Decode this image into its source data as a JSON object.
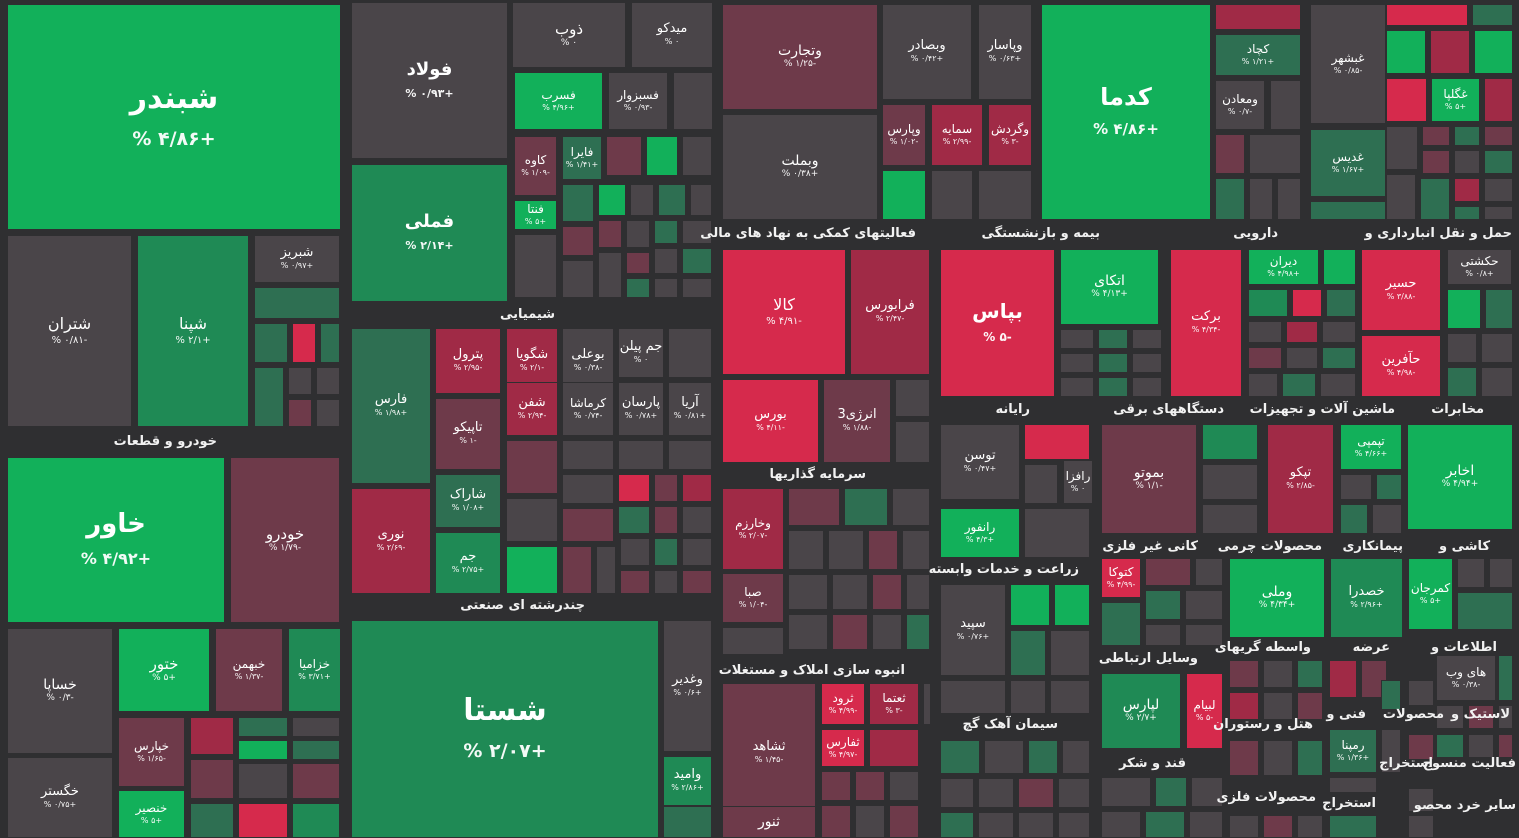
{
  "colors": {
    "background": "#2f2f31",
    "strong_green": "#12b05a",
    "green": "#1f8a55",
    "dark_green": "#2e6f52",
    "neutral": "#4a4549",
    "dark_red": "#6e3a4a",
    "red": "#a02a46",
    "strong_red": "#d62a4c"
  },
  "chart_data": {
    "type": "heatmap",
    "sectors": [
      {
        "label": "خودرو و قطعات"
      },
      {
        "label": "شیمیایی"
      },
      {
        "label": "چندرشته ای صنعتی"
      },
      {
        "label": "فعالیتهای کمکی به نهاد های مالی"
      },
      {
        "label": "بیمه و بازنشستگی"
      },
      {
        "label": "دارویی"
      },
      {
        "label": "حمل و نقل انبارداری و"
      },
      {
        "label": "سرمایه گذاریها"
      },
      {
        "label": "رایانه"
      },
      {
        "label": "دستگاههای برقی"
      },
      {
        "label": "ماشین آلات و تجهیزات"
      },
      {
        "label": "مخابرات"
      },
      {
        "label": "زراعت و خدمات وابسته"
      },
      {
        "label": "کانی غیر فلزی"
      },
      {
        "label": "محصولات چرمی"
      },
      {
        "label": "پیمانکاری"
      },
      {
        "label": "کاشی و"
      },
      {
        "label": "انبوه سازی املاک و مستغلات"
      },
      {
        "label": "وسایل ارتباطی"
      },
      {
        "label": "واسطه گریهای"
      },
      {
        "label": "عرضه"
      },
      {
        "label": "اطلاعات و"
      },
      {
        "label": "سیمان آهک گچ"
      },
      {
        "label": "هتل و رستوران"
      },
      {
        "label": "فنی و"
      },
      {
        "label": "محصولات"
      },
      {
        "label": "لاستیک و"
      },
      {
        "label": "قند و شکر"
      },
      {
        "label": "استخراج"
      },
      {
        "label": "فعالیت منسوج"
      },
      {
        "label": "محصولات فلزی"
      },
      {
        "label": "استخراج"
      },
      {
        "label": "ساير خرد محصو"
      }
    ],
    "tiles": [
      {
        "symbol": "شبندر",
        "change": "+۴/۸۶ %",
        "level": "strong_green"
      },
      {
        "symbol": "شتران",
        "change": "-۰/۸۱ %",
        "level": "neutral"
      },
      {
        "symbol": "شپنا",
        "change": "+۲/۱ %",
        "level": "green"
      },
      {
        "symbol": "شبریز",
        "change": "+۰/۹۷ %",
        "level": "neutral"
      },
      {
        "symbol": "خاور",
        "change": "+۴/۹۲ %",
        "level": "strong_green"
      },
      {
        "symbol": "خودرو",
        "change": "-۱/۷۹ %",
        "level": "dark_red"
      },
      {
        "symbol": "خساپا",
        "change": "-۰/۳ %",
        "level": "neutral"
      },
      {
        "symbol": "ختور",
        "change": "+۵ %",
        "level": "strong_green"
      },
      {
        "symbol": "خبهمن",
        "change": "-۱/۳۷ %",
        "level": "dark_red"
      },
      {
        "symbol": "خزامیا",
        "change": "+۳/۷۱ %",
        "level": "green"
      },
      {
        "symbol": "خپارس",
        "change": "-۱/۶۵ %",
        "level": "dark_red"
      },
      {
        "symbol": "خگستر",
        "change": "+۰/۷۵ %",
        "level": "neutral"
      },
      {
        "symbol": "خنصیر",
        "change": "+۵ %",
        "level": "strong_green"
      },
      {
        "symbol": "ذوب",
        "change": "۰ %",
        "level": "neutral"
      },
      {
        "symbol": "میدکو",
        "change": "۰ %",
        "level": "neutral"
      },
      {
        "symbol": "فولاد",
        "change": "+۰/۹۳ %",
        "level": "neutral"
      },
      {
        "symbol": "فسرب",
        "change": "+۴/۹۶ %",
        "level": "strong_green"
      },
      {
        "symbol": "فسبزوار",
        "change": "-۰/۹۳ %",
        "level": "neutral"
      },
      {
        "symbol": "کاوه",
        "change": "-۱/۰۹ %",
        "level": "dark_red"
      },
      {
        "symbol": "فایرا",
        "change": "+۱/۴۱ %",
        "level": "dark_green"
      },
      {
        "symbol": "فملی",
        "change": "+۲/۱۴ %",
        "level": "green"
      },
      {
        "symbol": "فنتا",
        "change": "+۵ %",
        "level": "strong_green"
      },
      {
        "symbol": "فارس",
        "change": "+۱/۹۸ %",
        "level": "dark_green"
      },
      {
        "symbol": "پترول",
        "change": "-۲/۹۵ %",
        "level": "red"
      },
      {
        "symbol": "شگویا",
        "change": "-۲/۱ %",
        "level": "red"
      },
      {
        "symbol": "بوعلی",
        "change": "-۰/۳۸ %",
        "level": "neutral"
      },
      {
        "symbol": "جم پیلن",
        "change": "۰ %",
        "level": "neutral"
      },
      {
        "symbol": "شفن",
        "change": "-۲/۹۴ %",
        "level": "red"
      },
      {
        "symbol": "کرماشا",
        "change": "-۰/۷۴ %",
        "level": "neutral"
      },
      {
        "symbol": "پارسان",
        "change": "+۰/۷۸ %",
        "level": "neutral"
      },
      {
        "symbol": "آریا",
        "change": "+۰/۸۱ %",
        "level": "neutral"
      },
      {
        "symbol": "تاپیکو",
        "change": "-۱ %",
        "level": "dark_red"
      },
      {
        "symbol": "شاراک",
        "change": "+۱/۰۸ %",
        "level": "dark_green"
      },
      {
        "symbol": "نوری",
        "change": "-۲/۶۹ %",
        "level": "red"
      },
      {
        "symbol": "جم",
        "change": "+۲/۷۵ %",
        "level": "green"
      },
      {
        "symbol": "شستا",
        "change": "+۲/۰۷ %",
        "level": "green"
      },
      {
        "symbol": "وغدیر",
        "change": "+۰/۶ %",
        "level": "neutral"
      },
      {
        "symbol": "وامید",
        "change": "+۲/۸۶ %",
        "level": "green"
      },
      {
        "symbol": "وتجارت",
        "change": "-۱/۲۵ %",
        "level": "dark_red"
      },
      {
        "symbol": "وبصادر",
        "change": "+۰/۴۲ %",
        "level": "neutral"
      },
      {
        "symbol": "وپاسار",
        "change": "+۰/۶۳ %",
        "level": "neutral"
      },
      {
        "symbol": "وبملت",
        "change": "+۰/۳۸ %",
        "level": "neutral"
      },
      {
        "symbol": "وپارس",
        "change": "-۱/۰۲ %",
        "level": "dark_red"
      },
      {
        "symbol": "سمایه",
        "change": "-۲/۹۹ %",
        "level": "red"
      },
      {
        "symbol": "وگردش",
        "change": "-۳ %",
        "level": "red"
      },
      {
        "symbol": "کالا",
        "change": "-۴/۹۱ %",
        "level": "strong_red"
      },
      {
        "symbol": "فرابورس",
        "change": "-۲/۴۷ %",
        "level": "red"
      },
      {
        "symbol": "بورس",
        "change": "-۴/۱۱ %",
        "level": "strong_red"
      },
      {
        "symbol": "انرژی3",
        "change": "-۱/۸۸ %",
        "level": "dark_red"
      },
      {
        "symbol": "کدما",
        "change": "+۴/۸۶ %",
        "level": "strong_green"
      },
      {
        "symbol": "کچاد",
        "change": "+۱/۲۱ %",
        "level": "dark_green"
      },
      {
        "symbol": "ومعادن",
        "change": "-۰/۷ %",
        "level": "neutral"
      },
      {
        "symbol": "غبشهر",
        "change": "-۰/۸۵ %",
        "level": "neutral"
      },
      {
        "symbol": "غگلپا",
        "change": "+۵ %",
        "level": "strong_green"
      },
      {
        "symbol": "غدیس",
        "change": "+۱/۶۷ %",
        "level": "dark_green"
      },
      {
        "symbol": "بپاس",
        "change": "-۵ %",
        "level": "strong_red"
      },
      {
        "symbol": "اتکای",
        "change": "+۴/۱۳ %",
        "level": "strong_green"
      },
      {
        "symbol": "برکت",
        "change": "-۴/۳۴ %",
        "level": "strong_red"
      },
      {
        "symbol": "دیران",
        "change": "+۴/۹۸ %",
        "level": "strong_green"
      },
      {
        "symbol": "حسیر",
        "change": "-۳/۸۸ %",
        "level": "strong_red"
      },
      {
        "symbol": "حکشتی",
        "change": "+۰/۸ %",
        "level": "neutral"
      },
      {
        "symbol": "حآفرین",
        "change": "-۴/۹۸ %",
        "level": "strong_red"
      },
      {
        "symbol": "توسن",
        "change": "+۰/۴۷ %",
        "level": "neutral"
      },
      {
        "symbol": "رافزا",
        "change": "۰ %",
        "level": "neutral"
      },
      {
        "symbol": "رانفور",
        "change": "+۴/۳ %",
        "level": "strong_green"
      },
      {
        "symbol": "بموتو",
        "change": "-۱/۱ %",
        "level": "dark_red"
      },
      {
        "symbol": "تپکو",
        "change": "-۲/۸۵ %",
        "level": "red"
      },
      {
        "symbol": "تپمپی",
        "change": "+۴/۶۶ %",
        "level": "strong_green"
      },
      {
        "symbol": "اخابر",
        "change": "+۴/۹۴ %",
        "level": "strong_green"
      },
      {
        "symbol": "وخارزم",
        "change": "-۲/۰۷ %",
        "level": "red"
      },
      {
        "symbol": "صبا",
        "change": "-۱/۰۴ %",
        "level": "dark_red"
      },
      {
        "symbol": "سپید",
        "change": "+۰/۷۶ %",
        "level": "neutral"
      },
      {
        "symbol": "کتوکا",
        "change": "-۴/۹۹ %",
        "level": "strong_red"
      },
      {
        "symbol": "وملی",
        "change": "+۴/۳۴ %",
        "level": "strong_green"
      },
      {
        "symbol": "خصدرا",
        "change": "+۲/۹۶ %",
        "level": "green"
      },
      {
        "symbol": "کمرجان",
        "change": "+۵ %",
        "level": "strong_green"
      },
      {
        "symbol": "ثرود",
        "change": "-۴/۹۹ %",
        "level": "strong_red"
      },
      {
        "symbol": "ثعتما",
        "change": "-۳ %",
        "level": "red"
      },
      {
        "symbol": "ثشاهد",
        "change": "-۱/۴۵ %",
        "level": "dark_red"
      },
      {
        "symbol": "ثفارس",
        "change": "-۴/۹۷ %",
        "level": "strong_red"
      },
      {
        "symbol": "ثنور",
        "change": "",
        "level": "dark_red"
      },
      {
        "symbol": "لپارس",
        "change": "+۲/۷ %",
        "level": "green"
      },
      {
        "symbol": "لبیام",
        "change": "-۵ %",
        "level": "strong_red"
      },
      {
        "symbol": "های وب",
        "change": "-۰/۳۸ %",
        "level": "neutral"
      },
      {
        "symbol": "رمپنا",
        "change": "+۱/۳۶ %",
        "level": "dark_green"
      }
    ]
  }
}
